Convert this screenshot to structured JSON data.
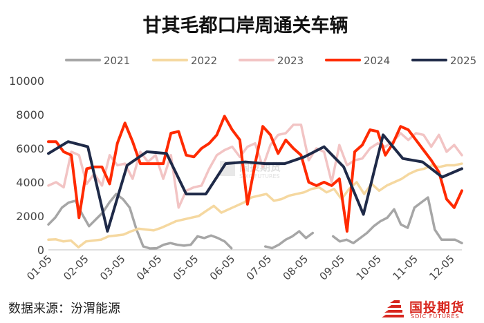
{
  "chart_data": {
    "type": "line",
    "title": "甘其毛都口岸周通关车辆",
    "xlabel": "",
    "ylabel": "",
    "ylim": [
      0,
      10000
    ],
    "yticks": [
      "0",
      "2000",
      "4000",
      "6000",
      "8000",
      "10000"
    ],
    "x_tick_labels": [
      "01-05",
      "02-05",
      "03-05",
      "04-05",
      "05-05",
      "06-05",
      "07-05",
      "08-05",
      "09-05",
      "10-05",
      "11-05",
      "12-05"
    ],
    "x_range_weeks": [
      1,
      52
    ],
    "grid": false,
    "legend_position": "top",
    "series": [
      {
        "name": "2021",
        "color": "#a6a6a6",
        "values": [
          1500,
          1900,
          2500,
          2800,
          2900,
          2100,
          1400,
          1800,
          2200,
          2800,
          3300,
          3000,
          2500,
          1200,
          200,
          80,
          100,
          300,
          400,
          300,
          250,
          300,
          800,
          700,
          850,
          700,
          500,
          100,
          null,
          null,
          null,
          null,
          200,
          100,
          300,
          600,
          800,
          1100,
          700,
          1000,
          null,
          null,
          800,
          500,
          600,
          400,
          700,
          1000,
          1400,
          1700,
          1900,
          2400,
          1500,
          1300,
          2500,
          2800,
          3100,
          1200,
          600,
          600,
          600,
          400
        ]
      },
      {
        "name": "2022",
        "color": "#f5d8a0",
        "values": [
          600,
          620,
          500,
          550,
          150,
          500,
          550,
          600,
          800,
          850,
          900,
          1100,
          1250,
          1200,
          1150,
          1300,
          1500,
          1700,
          1800,
          1900,
          2000,
          2300,
          2600,
          2200,
          2400,
          2600,
          2800,
          3100,
          3200,
          3300,
          2900,
          3000,
          3200,
          3300,
          3400,
          3600,
          3700,
          3400,
          3600,
          3000,
          3600,
          4000,
          3300,
          3900,
          3500,
          3800,
          4000,
          4200,
          4500,
          4700,
          4800,
          5000,
          4900,
          5000,
          5000,
          5100
        ]
      },
      {
        "name": "2023",
        "color": "#f2c4c4",
        "values": [
          3800,
          4000,
          3700,
          5800,
          5600,
          3900,
          4500,
          3800,
          5600,
          5000,
          5100,
          4200,
          5800,
          5200,
          5600,
          4200,
          5600,
          2500,
          3500,
          3700,
          3800,
          4800,
          5600,
          5900,
          6100,
          5500,
          6100,
          6300,
          4900,
          6200,
          6800,
          6900,
          7400,
          7400,
          5300,
          6000,
          5800,
          4000,
          6200,
          5000,
          5300,
          5400,
          6000,
          6300,
          6100,
          6400,
          6900,
          6500,
          6900,
          6800,
          6100,
          6800,
          5800,
          6200,
          5600
        ]
      },
      {
        "name": "2024",
        "color": "#ff2a00",
        "values": [
          6400,
          6400,
          5800,
          5600,
          1900,
          4800,
          4900,
          4900,
          3900,
          6300,
          7500,
          6400,
          5100,
          5100,
          5100,
          5100,
          6900,
          7000,
          5600,
          5500,
          6000,
          6300,
          6800,
          7900,
          7100,
          6500,
          2700,
          5100,
          7300,
          6800,
          5700,
          6500,
          6000,
          5600,
          4000,
          3800,
          4000,
          3800,
          4200,
          1100,
          5800,
          6200,
          7100,
          7000,
          5600,
          6300,
          7300,
          7100,
          6500,
          5900,
          5300,
          4600,
          3000,
          2500,
          3500
        ]
      },
      {
        "name": "2025",
        "color": "#1f2a48",
        "values": [
          5700,
          6400,
          6100,
          1100,
          5000,
          5800,
          5700,
          3300,
          3300,
          5100,
          5200,
          5100,
          5100,
          5500,
          6100,
          4900,
          2100,
          6800,
          5400,
          5200,
          4300,
          4800
        ]
      }
    ]
  },
  "footer": {
    "source": "数据来源：汾渭能源"
  },
  "watermark": {
    "cn": "国投期货",
    "en": "SDIC FUTURES"
  },
  "logo": {
    "cn": "国投期货",
    "en": "SDIC FUTURES",
    "color": "#d7261e"
  }
}
